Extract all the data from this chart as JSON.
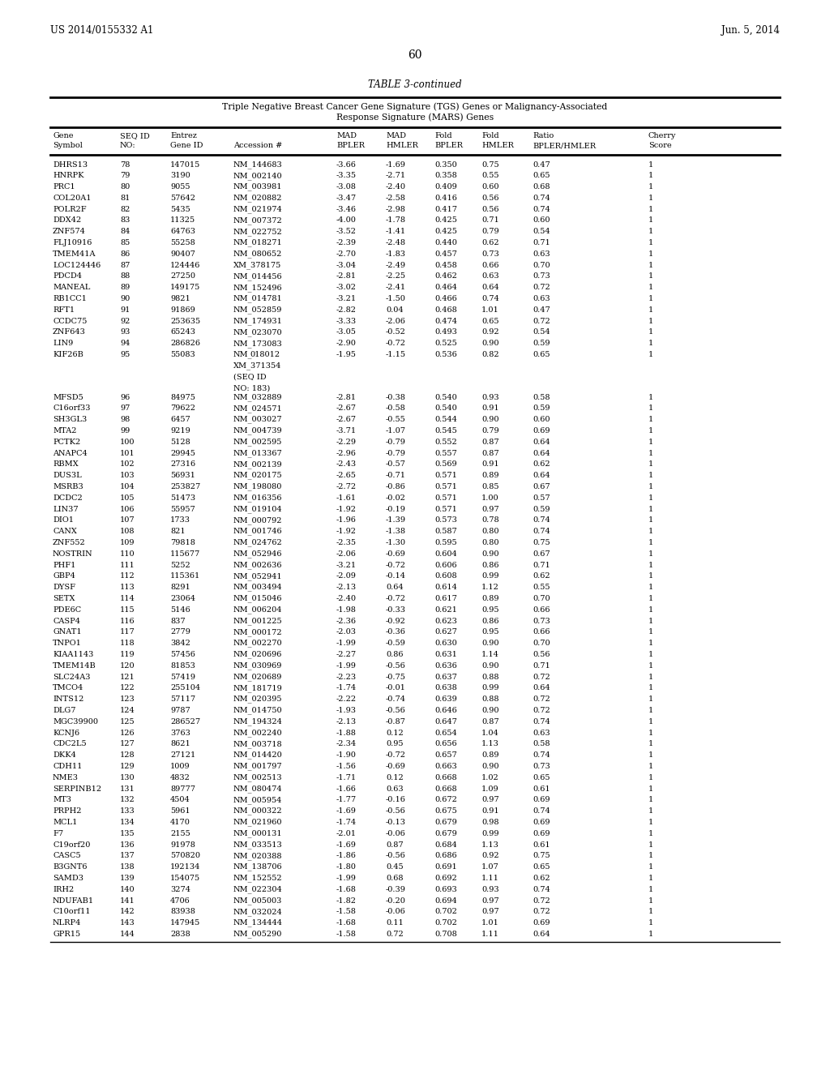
{
  "page_header_left": "US 2014/0155332 A1",
  "page_header_right": "Jun. 5, 2014",
  "page_number": "60",
  "table_title": "TABLE 3-continued",
  "subtitle_line1": "Triple Negative Breast Cancer Gene Signature (TGS) Genes or Malignancy-Associated",
  "subtitle_line2": "Response Signature (MARS) Genes",
  "col_headers_line1": [
    "Gene",
    "SEQ ID",
    "Entrez",
    "",
    "MAD",
    "MAD",
    "Fold",
    "Fold",
    "Ratio",
    "Cherry"
  ],
  "col_headers_line2": [
    "Symbol",
    "NO:",
    "Gene ID",
    "Accession #",
    "BPLER",
    "HMLER",
    "BPLER",
    "HMLER",
    "BPLER/HMLER",
    "Score"
  ],
  "rows": [
    [
      "DHRS13",
      "78",
      "147015",
      "NM_144683",
      "-3.66",
      "-1.69",
      "0.350",
      "0.75",
      "0.47",
      "1"
    ],
    [
      "HNRPK",
      "79",
      "3190",
      "NM_002140",
      "-3.35",
      "-2.71",
      "0.358",
      "0.55",
      "0.65",
      "1"
    ],
    [
      "PRC1",
      "80",
      "9055",
      "NM_003981",
      "-3.08",
      "-2.40",
      "0.409",
      "0.60",
      "0.68",
      "1"
    ],
    [
      "COL20A1",
      "81",
      "57642",
      "NM_020882",
      "-3.47",
      "-2.58",
      "0.416",
      "0.56",
      "0.74",
      "1"
    ],
    [
      "POLR2F",
      "82",
      "5435",
      "NM_021974",
      "-3.46",
      "-2.98",
      "0.417",
      "0.56",
      "0.74",
      "1"
    ],
    [
      "DDX42",
      "83",
      "11325",
      "NM_007372",
      "-4.00",
      "-1.78",
      "0.425",
      "0.71",
      "0.60",
      "1"
    ],
    [
      "ZNF574",
      "84",
      "64763",
      "NM_022752",
      "-3.52",
      "-1.41",
      "0.425",
      "0.79",
      "0.54",
      "1"
    ],
    [
      "FLJ10916",
      "85",
      "55258",
      "NM_018271",
      "-2.39",
      "-2.48",
      "0.440",
      "0.62",
      "0.71",
      "1"
    ],
    [
      "TMEM41A",
      "86",
      "90407",
      "NM_080652",
      "-2.70",
      "-1.83",
      "0.457",
      "0.73",
      "0.63",
      "1"
    ],
    [
      "LOC124446",
      "87",
      "124446",
      "XM_378175",
      "-3.04",
      "-2.49",
      "0.458",
      "0.66",
      "0.70",
      "1"
    ],
    [
      "PDCD4",
      "88",
      "27250",
      "NM_014456",
      "-2.81",
      "-2.25",
      "0.462",
      "0.63",
      "0.73",
      "1"
    ],
    [
      "MANEAL",
      "89",
      "149175",
      "NM_152496",
      "-3.02",
      "-2.41",
      "0.464",
      "0.64",
      "0.72",
      "1"
    ],
    [
      "RB1CC1",
      "90",
      "9821",
      "NM_014781",
      "-3.21",
      "-1.50",
      "0.466",
      "0.74",
      "0.63",
      "1"
    ],
    [
      "RFT1",
      "91",
      "91869",
      "NM_052859",
      "-2.82",
      "0.04",
      "0.468",
      "1.01",
      "0.47",
      "1"
    ],
    [
      "CCDC75",
      "92",
      "253635",
      "NM_174931",
      "-3.33",
      "-2.06",
      "0.474",
      "0.65",
      "0.72",
      "1"
    ],
    [
      "ZNF643",
      "93",
      "65243",
      "NM_023070",
      "-3.05",
      "-0.52",
      "0.493",
      "0.92",
      "0.54",
      "1"
    ],
    [
      "LIN9",
      "94",
      "286826",
      "NM_173083",
      "-2.90",
      "-0.72",
      "0.525",
      "0.90",
      "0.59",
      "1"
    ],
    [
      "KIF26B",
      "95",
      "55083",
      "NM_018012",
      "-1.95",
      "-1.15",
      "0.536",
      "0.82",
      "0.65",
      "1"
    ],
    [
      "MFSD5",
      "96",
      "84975",
      "NM_032889",
      "-2.81",
      "-0.38",
      "0.540",
      "0.93",
      "0.58",
      "1"
    ],
    [
      "C16orf33",
      "97",
      "79622",
      "NM_024571",
      "-2.67",
      "-0.58",
      "0.540",
      "0.91",
      "0.59",
      "1"
    ],
    [
      "SH3GL3",
      "98",
      "6457",
      "NM_003027",
      "-2.67",
      "-0.55",
      "0.544",
      "0.90",
      "0.60",
      "1"
    ],
    [
      "MTA2",
      "99",
      "9219",
      "NM_004739",
      "-3.71",
      "-1.07",
      "0.545",
      "0.79",
      "0.69",
      "1"
    ],
    [
      "PCTK2",
      "100",
      "5128",
      "NM_002595",
      "-2.29",
      "-0.79",
      "0.552",
      "0.87",
      "0.64",
      "1"
    ],
    [
      "ANAPC4",
      "101",
      "29945",
      "NM_013367",
      "-2.96",
      "-0.79",
      "0.557",
      "0.87",
      "0.64",
      "1"
    ],
    [
      "RBMX",
      "102",
      "27316",
      "NM_002139",
      "-2.43",
      "-0.57",
      "0.569",
      "0.91",
      "0.62",
      "1"
    ],
    [
      "DUS3L",
      "103",
      "56931",
      "NM_020175",
      "-2.65",
      "-0.71",
      "0.571",
      "0.89",
      "0.64",
      "1"
    ],
    [
      "MSRB3",
      "104",
      "253827",
      "NM_198080",
      "-2.72",
      "-0.86",
      "0.571",
      "0.85",
      "0.67",
      "1"
    ],
    [
      "DCDC2",
      "105",
      "51473",
      "NM_016356",
      "-1.61",
      "-0.02",
      "0.571",
      "1.00",
      "0.57",
      "1"
    ],
    [
      "LIN37",
      "106",
      "55957",
      "NM_019104",
      "-1.92",
      "-0.19",
      "0.571",
      "0.97",
      "0.59",
      "1"
    ],
    [
      "DIO1",
      "107",
      "1733",
      "NM_000792",
      "-1.96",
      "-1.39",
      "0.573",
      "0.78",
      "0.74",
      "1"
    ],
    [
      "CANX",
      "108",
      "821",
      "NM_001746",
      "-1.92",
      "-1.38",
      "0.587",
      "0.80",
      "0.74",
      "1"
    ],
    [
      "ZNF552",
      "109",
      "79818",
      "NM_024762",
      "-2.35",
      "-1.30",
      "0.595",
      "0.80",
      "0.75",
      "1"
    ],
    [
      "NOSTRIN",
      "110",
      "115677",
      "NM_052946",
      "-2.06",
      "-0.69",
      "0.604",
      "0.90",
      "0.67",
      "1"
    ],
    [
      "PHF1",
      "111",
      "5252",
      "NM_002636",
      "-3.21",
      "-0.72",
      "0.606",
      "0.86",
      "0.71",
      "1"
    ],
    [
      "GBP4",
      "112",
      "115361",
      "NM_052941",
      "-2.09",
      "-0.14",
      "0.608",
      "0.99",
      "0.62",
      "1"
    ],
    [
      "DYSF",
      "113",
      "8291",
      "NM_003494",
      "-2.13",
      "0.64",
      "0.614",
      "1.12",
      "0.55",
      "1"
    ],
    [
      "SETX",
      "114",
      "23064",
      "NM_015046",
      "-2.40",
      "-0.72",
      "0.617",
      "0.89",
      "0.70",
      "1"
    ],
    [
      "PDE6C",
      "115",
      "5146",
      "NM_006204",
      "-1.98",
      "-0.33",
      "0.621",
      "0.95",
      "0.66",
      "1"
    ],
    [
      "CASP4",
      "116",
      "837",
      "NM_001225",
      "-2.36",
      "-0.92",
      "0.623",
      "0.86",
      "0.73",
      "1"
    ],
    [
      "GNAT1",
      "117",
      "2779",
      "NM_000172",
      "-2.03",
      "-0.36",
      "0.627",
      "0.95",
      "0.66",
      "1"
    ],
    [
      "TNPO1",
      "118",
      "3842",
      "NM_002270",
      "-1.99",
      "-0.59",
      "0.630",
      "0.90",
      "0.70",
      "1"
    ],
    [
      "KIAA1143",
      "119",
      "57456",
      "NM_020696",
      "-2.27",
      "0.86",
      "0.631",
      "1.14",
      "0.56",
      "1"
    ],
    [
      "TMEM14B",
      "120",
      "81853",
      "NM_030969",
      "-1.99",
      "-0.56",
      "0.636",
      "0.90",
      "0.71",
      "1"
    ],
    [
      "SLC24A3",
      "121",
      "57419",
      "NM_020689",
      "-2.23",
      "-0.75",
      "0.637",
      "0.88",
      "0.72",
      "1"
    ],
    [
      "TMCO4",
      "122",
      "255104",
      "NM_181719",
      "-1.74",
      "-0.01",
      "0.638",
      "0.99",
      "0.64",
      "1"
    ],
    [
      "INTS12",
      "123",
      "57117",
      "NM_020395",
      "-2.22",
      "-0.74",
      "0.639",
      "0.88",
      "0.72",
      "1"
    ],
    [
      "DLG7",
      "124",
      "9787",
      "NM_014750",
      "-1.93",
      "-0.56",
      "0.646",
      "0.90",
      "0.72",
      "1"
    ],
    [
      "MGC39900",
      "125",
      "286527",
      "NM_194324",
      "-2.13",
      "-0.87",
      "0.647",
      "0.87",
      "0.74",
      "1"
    ],
    [
      "KCNJ6",
      "126",
      "3763",
      "NM_002240",
      "-1.88",
      "0.12",
      "0.654",
      "1.04",
      "0.63",
      "1"
    ],
    [
      "CDC2L5",
      "127",
      "8621",
      "NM_003718",
      "-2.34",
      "0.95",
      "0.656",
      "1.13",
      "0.58",
      "1"
    ],
    [
      "DKK4",
      "128",
      "27121",
      "NM_014420",
      "-1.90",
      "-0.72",
      "0.657",
      "0.89",
      "0.74",
      "1"
    ],
    [
      "CDH11",
      "129",
      "1009",
      "NM_001797",
      "-1.56",
      "-0.69",
      "0.663",
      "0.90",
      "0.73",
      "1"
    ],
    [
      "NME3",
      "130",
      "4832",
      "NM_002513",
      "-1.71",
      "0.12",
      "0.668",
      "1.02",
      "0.65",
      "1"
    ],
    [
      "SERPINB12",
      "131",
      "89777",
      "NM_080474",
      "-1.66",
      "0.63",
      "0.668",
      "1.09",
      "0.61",
      "1"
    ],
    [
      "MT3",
      "132",
      "4504",
      "NM_005954",
      "-1.77",
      "-0.16",
      "0.672",
      "0.97",
      "0.69",
      "1"
    ],
    [
      "PRPH2",
      "133",
      "5961",
      "NM_000322",
      "-1.69",
      "-0.56",
      "0.675",
      "0.91",
      "0.74",
      "1"
    ],
    [
      "MCL1",
      "134",
      "4170",
      "NM_021960",
      "-1.74",
      "-0.13",
      "0.679",
      "0.98",
      "0.69",
      "1"
    ],
    [
      "F7",
      "135",
      "2155",
      "NM_000131",
      "-2.01",
      "-0.06",
      "0.679",
      "0.99",
      "0.69",
      "1"
    ],
    [
      "C19orf20",
      "136",
      "91978",
      "NM_033513",
      "-1.69",
      "0.87",
      "0.684",
      "1.13",
      "0.61",
      "1"
    ],
    [
      "CASC5",
      "137",
      "570820",
      "NM_020388",
      "-1.86",
      "-0.56",
      "0.686",
      "0.92",
      "0.75",
      "1"
    ],
    [
      "B3GNT6",
      "138",
      "192134",
      "NM_138706",
      "-1.80",
      "0.45",
      "0.691",
      "1.07",
      "0.65",
      "1"
    ],
    [
      "SAMD3",
      "139",
      "154075",
      "NM_152552",
      "-1.99",
      "0.68",
      "0.692",
      "1.11",
      "0.62",
      "1"
    ],
    [
      "IRH2",
      "140",
      "3274",
      "NM_022304",
      "-1.68",
      "-0.39",
      "0.693",
      "0.93",
      "0.74",
      "1"
    ],
    [
      "NDUFAB1",
      "141",
      "4706",
      "NM_005003",
      "-1.82",
      "-0.20",
      "0.694",
      "0.97",
      "0.72",
      "1"
    ],
    [
      "C10orf11",
      "142",
      "83938",
      "NM_032024",
      "-1.58",
      "-0.06",
      "0.702",
      "0.97",
      "0.72",
      "1"
    ],
    [
      "NLRP4",
      "143",
      "147945",
      "NM_134444",
      "-1.68",
      "0.11",
      "0.702",
      "1.01",
      "0.69",
      "1"
    ],
    [
      "GPR15",
      "144",
      "2838",
      "NM_005290",
      "-1.58",
      "0.72",
      "0.708",
      "1.11",
      "0.64",
      "1"
    ]
  ],
  "kif26b_extra": [
    "018012",
    "XM_371354",
    "(SEQ ID",
    "NO: 183)"
  ]
}
